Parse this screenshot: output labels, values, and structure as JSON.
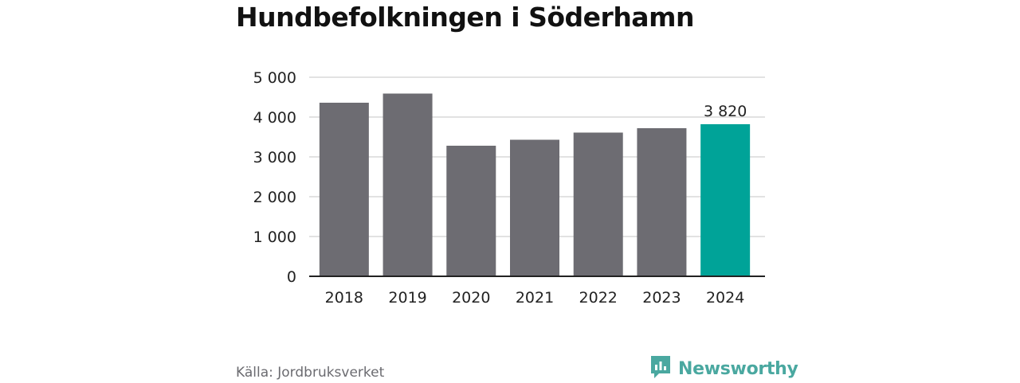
{
  "title": "Hundbefolkningen i Söderhamn",
  "source": "Källa: Jordbruksverket",
  "brand": {
    "name": "Newsworthy",
    "icon": "newsworthy-logo-icon",
    "color": "#4aa8a0"
  },
  "colors": {
    "bar": "#6d6c72",
    "highlight": "#00a398",
    "grid": "#d9d9d9",
    "axis": "#222222",
    "text": "#222222"
  },
  "chart_data": {
    "type": "bar",
    "title": "Hundbefolkningen i Söderhamn",
    "categories": [
      "2018",
      "2019",
      "2020",
      "2021",
      "2022",
      "2023",
      "2024"
    ],
    "values": [
      4360,
      4590,
      3280,
      3430,
      3610,
      3720,
      3820
    ],
    "ylim": [
      0,
      5000
    ],
    "yticks": [
      0,
      1000,
      2000,
      3000,
      4000,
      5000
    ],
    "ytick_labels": [
      "0",
      "1 000",
      "2 000",
      "3 000",
      "4 000",
      "5 000"
    ],
    "highlight_index": 6,
    "data_labels": [
      {
        "index": 6,
        "text": "3 820"
      }
    ],
    "grid": true,
    "legend": "none"
  }
}
